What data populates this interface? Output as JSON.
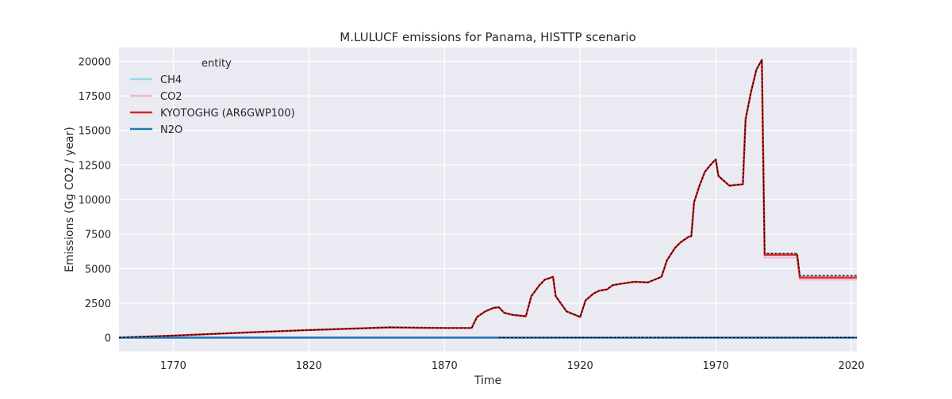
{
  "chart_data": {
    "type": "line",
    "title": "M.LULUCF emissions for Panama, HISTTP scenario",
    "xlabel": "Time",
    "ylabel": "Emissions (Gg CO2 / year)",
    "xlim": [
      1750,
      2022
    ],
    "ylim": [
      -1000,
      21000
    ],
    "x_ticks": [
      1770,
      1820,
      1870,
      1920,
      1970,
      2020
    ],
    "y_ticks": [
      0,
      2500,
      5000,
      7500,
      10000,
      12500,
      15000,
      17500,
      20000
    ],
    "grid": true,
    "legend": {
      "title": "entity",
      "placement": "top-left"
    },
    "series": [
      {
        "name": "CH4",
        "color": "#9ad8e8",
        "points": [
          [
            1750,
            0
          ],
          [
            1890,
            0
          ]
        ]
      },
      {
        "name": "CO2",
        "color": "#f4b6cf",
        "points": [
          [
            1750,
            0
          ],
          [
            1770,
            150
          ],
          [
            1800,
            400
          ],
          [
            1820,
            550
          ],
          [
            1850,
            750
          ],
          [
            1860,
            720
          ],
          [
            1870,
            700
          ],
          [
            1880,
            700
          ],
          [
            1882,
            1500
          ],
          [
            1885,
            1900
          ],
          [
            1888,
            2150
          ],
          [
            1890,
            2200
          ],
          [
            1892,
            1800
          ],
          [
            1895,
            1650
          ],
          [
            1900,
            1550
          ],
          [
            1902,
            3000
          ],
          [
            1905,
            3800
          ],
          [
            1907,
            4200
          ],
          [
            1910,
            4400
          ],
          [
            1911,
            3000
          ],
          [
            1915,
            1900
          ],
          [
            1920,
            1500
          ],
          [
            1922,
            2700
          ],
          [
            1925,
            3200
          ],
          [
            1927,
            3400
          ],
          [
            1930,
            3500
          ],
          [
            1932,
            3800
          ],
          [
            1935,
            3900
          ],
          [
            1940,
            4050
          ],
          [
            1945,
            4000
          ],
          [
            1950,
            4400
          ],
          [
            1952,
            5600
          ],
          [
            1955,
            6500
          ],
          [
            1957,
            6900
          ],
          [
            1960,
            7300
          ],
          [
            1961,
            7350
          ],
          [
            1962,
            9800
          ],
          [
            1964,
            11000
          ],
          [
            1966,
            12000
          ],
          [
            1968,
            12500
          ],
          [
            1970,
            12900
          ],
          [
            1971,
            11700
          ],
          [
            1975,
            11000
          ],
          [
            1980,
            11100
          ],
          [
            1981,
            15800
          ],
          [
            1983,
            17800
          ],
          [
            1985,
            19400
          ],
          [
            1987,
            20100
          ],
          [
            1988,
            5800
          ],
          [
            2000,
            5800
          ],
          [
            2001,
            4200
          ],
          [
            2022,
            4200
          ]
        ]
      },
      {
        "name": "KYOTOGHG (AR6GWP100)",
        "color": "#d62728",
        "points": [
          [
            1750,
            0
          ],
          [
            1770,
            150
          ],
          [
            1800,
            400
          ],
          [
            1820,
            550
          ],
          [
            1850,
            750
          ],
          [
            1860,
            720
          ],
          [
            1870,
            700
          ],
          [
            1880,
            700
          ],
          [
            1882,
            1500
          ],
          [
            1885,
            1900
          ],
          [
            1888,
            2150
          ],
          [
            1890,
            2200
          ],
          [
            1892,
            1800
          ],
          [
            1895,
            1650
          ],
          [
            1900,
            1550
          ],
          [
            1902,
            3000
          ],
          [
            1905,
            3800
          ],
          [
            1907,
            4200
          ],
          [
            1910,
            4400
          ],
          [
            1911,
            3000
          ],
          [
            1915,
            1900
          ],
          [
            1920,
            1500
          ],
          [
            1922,
            2700
          ],
          [
            1925,
            3200
          ],
          [
            1927,
            3400
          ],
          [
            1930,
            3500
          ],
          [
            1932,
            3800
          ],
          [
            1935,
            3900
          ],
          [
            1940,
            4050
          ],
          [
            1945,
            4000
          ],
          [
            1950,
            4400
          ],
          [
            1952,
            5600
          ],
          [
            1955,
            6500
          ],
          [
            1957,
            6900
          ],
          [
            1960,
            7300
          ],
          [
            1961,
            7350
          ],
          [
            1962,
            9800
          ],
          [
            1964,
            11000
          ],
          [
            1966,
            12000
          ],
          [
            1968,
            12500
          ],
          [
            1970,
            12900
          ],
          [
            1971,
            11700
          ],
          [
            1975,
            11000
          ],
          [
            1980,
            11100
          ],
          [
            1981,
            15800
          ],
          [
            1983,
            17800
          ],
          [
            1985,
            19400
          ],
          [
            1987,
            20100
          ],
          [
            1988,
            6000
          ],
          [
            2000,
            6000
          ],
          [
            2001,
            4350
          ],
          [
            2022,
            4350
          ]
        ]
      },
      {
        "name": "N2O",
        "color": "#1f77b4",
        "points": [
          [
            1750,
            0
          ],
          [
            2022,
            0
          ]
        ]
      },
      {
        "name": "",
        "color": "#000000",
        "dashed": true,
        "points": [
          [
            1750,
            0
          ],
          [
            1770,
            150
          ],
          [
            1800,
            400
          ],
          [
            1820,
            550
          ],
          [
            1850,
            750
          ],
          [
            1860,
            720
          ],
          [
            1870,
            700
          ],
          [
            1880,
            700
          ],
          [
            1882,
            1500
          ],
          [
            1885,
            1900
          ],
          [
            1888,
            2150
          ],
          [
            1890,
            2200
          ],
          [
            1892,
            1800
          ],
          [
            1895,
            1650
          ],
          [
            1900,
            1550
          ],
          [
            1902,
            3000
          ],
          [
            1905,
            3800
          ],
          [
            1907,
            4200
          ],
          [
            1910,
            4400
          ],
          [
            1911,
            3000
          ],
          [
            1915,
            1900
          ],
          [
            1920,
            1500
          ],
          [
            1922,
            2700
          ],
          [
            1925,
            3200
          ],
          [
            1927,
            3400
          ],
          [
            1930,
            3500
          ],
          [
            1932,
            3800
          ],
          [
            1935,
            3900
          ],
          [
            1940,
            4050
          ],
          [
            1945,
            4000
          ],
          [
            1950,
            4400
          ],
          [
            1952,
            5600
          ],
          [
            1955,
            6500
          ],
          [
            1957,
            6900
          ],
          [
            1960,
            7300
          ],
          [
            1961,
            7350
          ],
          [
            1962,
            9800
          ],
          [
            1964,
            11000
          ],
          [
            1966,
            12000
          ],
          [
            1968,
            12500
          ],
          [
            1970,
            12900
          ],
          [
            1971,
            11700
          ],
          [
            1975,
            11000
          ],
          [
            1980,
            11100
          ],
          [
            1981,
            15800
          ],
          [
            1983,
            17800
          ],
          [
            1985,
            19400
          ],
          [
            1987,
            20100
          ],
          [
            1988,
            6100
          ],
          [
            2000,
            6100
          ],
          [
            2001,
            4500
          ],
          [
            2022,
            4500
          ]
        ]
      },
      {
        "name": "",
        "color": "#000000",
        "dashed": true,
        "points": [
          [
            1890,
            0
          ],
          [
            2022,
            0
          ]
        ]
      }
    ]
  }
}
